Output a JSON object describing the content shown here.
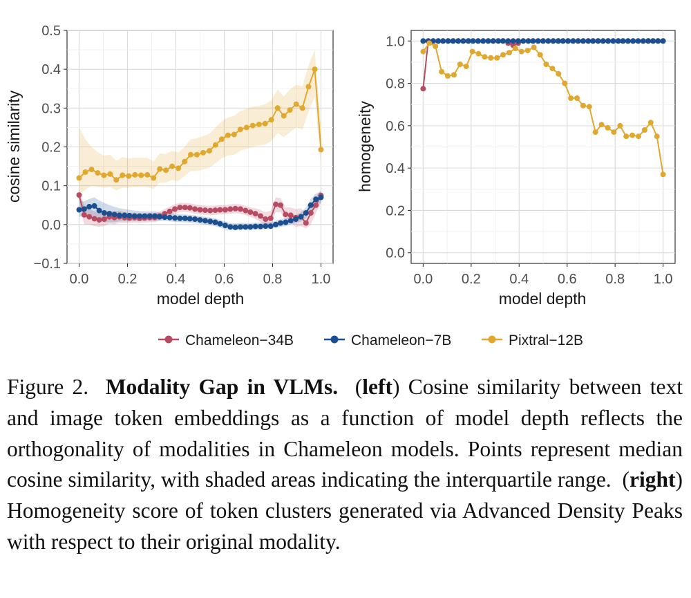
{
  "chart_data": [
    {
      "type": "line",
      "panel": "left",
      "xlabel": "model depth",
      "ylabel": "cosine similarity",
      "xlim": [
        -0.05,
        1.05
      ],
      "ylim": [
        -0.1,
        0.5
      ],
      "xticks": [
        "0.0",
        "0.2",
        "0.4",
        "0.6",
        "0.8",
        "1.0"
      ],
      "yticks": [
        "−0.1",
        "0.0",
        "0.1",
        "0.2",
        "0.3",
        "0.4",
        "0.5"
      ],
      "grid": true,
      "series": [
        {
          "name": "Chameleon−34B",
          "color": "#b84a62",
          "x": [
            0.0,
            0.021,
            0.042,
            0.063,
            0.083,
            0.104,
            0.125,
            0.146,
            0.167,
            0.188,
            0.208,
            0.229,
            0.25,
            0.271,
            0.292,
            0.313,
            0.333,
            0.354,
            0.375,
            0.396,
            0.417,
            0.438,
            0.458,
            0.479,
            0.5,
            0.521,
            0.542,
            0.563,
            0.583,
            0.604,
            0.625,
            0.646,
            0.667,
            0.688,
            0.708,
            0.729,
            0.75,
            0.771,
            0.792,
            0.813,
            0.833,
            0.854,
            0.875,
            0.896,
            0.917,
            0.938,
            0.958,
            0.979,
            1.0
          ],
          "y": [
            0.076,
            0.025,
            0.02,
            0.015,
            0.012,
            0.014,
            0.02,
            0.018,
            0.02,
            0.018,
            0.017,
            0.018,
            0.016,
            0.017,
            0.018,
            0.018,
            0.022,
            0.028,
            0.034,
            0.04,
            0.044,
            0.044,
            0.043,
            0.04,
            0.038,
            0.037,
            0.036,
            0.037,
            0.038,
            0.038,
            0.04,
            0.041,
            0.04,
            0.036,
            0.032,
            0.028,
            0.022,
            0.014,
            0.016,
            0.052,
            0.05,
            0.026,
            0.024,
            0.018,
            0.02,
            0.004,
            0.03,
            0.05,
            0.075
          ],
          "q1": [
            0.06,
            0.0,
            0.0,
            -0.004,
            -0.006,
            -0.004,
            0.002,
            0.0,
            0.004,
            0.004,
            0.004,
            0.005,
            0.004,
            0.005,
            0.006,
            0.006,
            0.01,
            0.016,
            0.022,
            0.028,
            0.032,
            0.032,
            0.031,
            0.028,
            0.026,
            0.025,
            0.024,
            0.025,
            0.026,
            0.026,
            0.028,
            0.029,
            0.028,
            0.024,
            0.02,
            0.014,
            0.006,
            -0.004,
            -0.004,
            0.032,
            0.032,
            0.008,
            0.004,
            -0.006,
            -0.004,
            -0.01,
            0.0,
            0.03,
            0.055
          ],
          "q3": [
            0.09,
            0.05,
            0.04,
            0.034,
            0.03,
            0.032,
            0.036,
            0.034,
            0.036,
            0.032,
            0.03,
            0.031,
            0.028,
            0.029,
            0.03,
            0.03,
            0.034,
            0.04,
            0.046,
            0.052,
            0.056,
            0.056,
            0.055,
            0.052,
            0.05,
            0.049,
            0.048,
            0.049,
            0.05,
            0.05,
            0.052,
            0.053,
            0.052,
            0.048,
            0.044,
            0.042,
            0.038,
            0.032,
            0.036,
            0.07,
            0.068,
            0.044,
            0.044,
            0.04,
            0.042,
            0.03,
            0.05,
            0.07,
            0.09
          ]
        },
        {
          "name": "Chameleon−7B",
          "color": "#1b4f8f",
          "x": [
            0.0,
            0.021,
            0.042,
            0.063,
            0.083,
            0.104,
            0.125,
            0.146,
            0.167,
            0.188,
            0.208,
            0.229,
            0.25,
            0.271,
            0.292,
            0.313,
            0.333,
            0.354,
            0.375,
            0.396,
            0.417,
            0.438,
            0.458,
            0.479,
            0.5,
            0.521,
            0.542,
            0.563,
            0.583,
            0.604,
            0.625,
            0.646,
            0.667,
            0.688,
            0.708,
            0.729,
            0.75,
            0.771,
            0.792,
            0.813,
            0.833,
            0.854,
            0.875,
            0.896,
            0.917,
            0.938,
            0.958,
            0.979,
            1.0
          ],
          "y": [
            0.038,
            0.04,
            0.046,
            0.048,
            0.036,
            0.03,
            0.028,
            0.026,
            0.024,
            0.024,
            0.023,
            0.022,
            0.022,
            0.022,
            0.022,
            0.022,
            0.02,
            0.019,
            0.018,
            0.017,
            0.016,
            0.016,
            0.015,
            0.014,
            0.012,
            0.01,
            0.008,
            0.006,
            0.002,
            -0.002,
            -0.006,
            -0.007,
            -0.006,
            -0.006,
            -0.006,
            -0.005,
            -0.005,
            -0.004,
            -0.004,
            0.0,
            0.004,
            0.006,
            0.01,
            0.014,
            0.02,
            0.03,
            0.05,
            0.065,
            0.07
          ],
          "q1": [
            0.02,
            0.022,
            0.024,
            0.02,
            0.01,
            0.006,
            0.006,
            0.006,
            0.008,
            0.008,
            0.008,
            0.009,
            0.009,
            0.01,
            0.01,
            0.01,
            0.01,
            0.009,
            0.008,
            0.007,
            0.006,
            0.006,
            0.005,
            0.004,
            0.002,
            0.0,
            -0.002,
            -0.004,
            -0.008,
            -0.012,
            -0.014,
            -0.015,
            -0.014,
            -0.014,
            -0.014,
            -0.013,
            -0.013,
            -0.012,
            -0.012,
            -0.008,
            -0.006,
            -0.004,
            0.0,
            0.004,
            0.008,
            0.016,
            0.034,
            0.05,
            0.055
          ],
          "q3": [
            0.06,
            0.06,
            0.066,
            0.07,
            0.062,
            0.056,
            0.05,
            0.046,
            0.042,
            0.04,
            0.038,
            0.036,
            0.035,
            0.034,
            0.034,
            0.034,
            0.031,
            0.03,
            0.029,
            0.028,
            0.027,
            0.026,
            0.025,
            0.024,
            0.022,
            0.02,
            0.018,
            0.016,
            0.012,
            0.008,
            0.004,
            0.003,
            0.004,
            0.004,
            0.004,
            0.005,
            0.005,
            0.006,
            0.006,
            0.01,
            0.014,
            0.016,
            0.02,
            0.024,
            0.032,
            0.044,
            0.066,
            0.08,
            0.085
          ]
        },
        {
          "name": "Pixtral−12B",
          "color": "#e0a82e",
          "x": [
            0.0,
            0.0256,
            0.0513,
            0.0769,
            0.1026,
            0.1282,
            0.1538,
            0.1795,
            0.2051,
            0.2308,
            0.2564,
            0.2821,
            0.3077,
            0.3333,
            0.359,
            0.3846,
            0.4103,
            0.4359,
            0.4615,
            0.4872,
            0.5128,
            0.5385,
            0.5641,
            0.5897,
            0.6154,
            0.641,
            0.6667,
            0.6923,
            0.7179,
            0.7436,
            0.7692,
            0.7949,
            0.8205,
            0.8462,
            0.8718,
            0.8974,
            0.9231,
            0.9487,
            0.9744,
            1.0
          ],
          "y": [
            0.12,
            0.135,
            0.142,
            0.133,
            0.127,
            0.13,
            0.115,
            0.127,
            0.125,
            0.128,
            0.127,
            0.128,
            0.12,
            0.143,
            0.14,
            0.15,
            0.145,
            0.162,
            0.18,
            0.18,
            0.185,
            0.19,
            0.205,
            0.22,
            0.23,
            0.232,
            0.245,
            0.25,
            0.255,
            0.258,
            0.26,
            0.27,
            0.3,
            0.28,
            0.295,
            0.31,
            0.3,
            0.355,
            0.4,
            0.193
          ],
          "q1": [
            0.075,
            0.09,
            0.1,
            0.097,
            0.095,
            0.097,
            0.088,
            0.095,
            0.095,
            0.097,
            0.097,
            0.097,
            0.092,
            0.108,
            0.108,
            0.115,
            0.112,
            0.125,
            0.138,
            0.138,
            0.142,
            0.146,
            0.158,
            0.17,
            0.178,
            0.18,
            0.19,
            0.195,
            0.2,
            0.203,
            0.206,
            0.215,
            0.236,
            0.225,
            0.238,
            0.25,
            0.245,
            0.29,
            0.33,
            0.15
          ],
          "q3": [
            0.25,
            0.22,
            0.2,
            0.186,
            0.178,
            0.18,
            0.164,
            0.174,
            0.17,
            0.172,
            0.172,
            0.172,
            0.163,
            0.183,
            0.182,
            0.19,
            0.186,
            0.2,
            0.22,
            0.222,
            0.228,
            0.234,
            0.25,
            0.266,
            0.276,
            0.28,
            0.292,
            0.298,
            0.304,
            0.306,
            0.31,
            0.32,
            0.348,
            0.33,
            0.348,
            0.36,
            0.356,
            0.41,
            0.45,
            0.25
          ]
        }
      ]
    },
    {
      "type": "line",
      "panel": "right",
      "xlabel": "model depth",
      "ylabel": "homogeneity",
      "xlim": [
        -0.05,
        1.05
      ],
      "ylim": [
        -0.05,
        1.05
      ],
      "xticks": [
        "0.0",
        "0.2",
        "0.4",
        "0.6",
        "0.8",
        "1.0"
      ],
      "yticks": [
        "0.0",
        "0.2",
        "0.4",
        "0.6",
        "0.8",
        "1.0"
      ],
      "grid": true,
      "series": [
        {
          "name": "Chameleon−34B",
          "color": "#b84a62",
          "x": [
            0.0,
            0.021,
            0.042,
            0.063,
            0.083,
            0.104,
            0.125,
            0.146,
            0.167,
            0.188,
            0.208,
            0.229,
            0.25,
            0.271,
            0.292,
            0.313,
            0.333,
            0.354,
            0.375,
            0.396,
            0.417,
            0.438,
            0.458,
            0.479,
            0.5,
            0.521,
            0.542,
            0.563,
            0.583,
            0.604,
            0.625,
            0.646,
            0.667,
            0.688,
            0.708,
            0.729,
            0.75,
            0.771,
            0.792,
            0.813,
            0.833,
            0.854,
            0.875,
            0.896,
            0.917,
            0.938,
            0.958,
            0.979,
            1.0
          ],
          "y": [
            0.775,
            1.0,
            1.0,
            1.0,
            1.0,
            1.0,
            1.0,
            1.0,
            1.0,
            1.0,
            1.0,
            1.0,
            1.0,
            1.0,
            1.0,
            1.0,
            1.0,
            0.99,
            0.98,
            0.99,
            1.0,
            1.0,
            1.0,
            1.0,
            1.0,
            1.0,
            1.0,
            1.0,
            1.0,
            1.0,
            1.0,
            1.0,
            1.0,
            1.0,
            1.0,
            1.0,
            1.0,
            1.0,
            1.0,
            1.0,
            1.0,
            1.0,
            1.0,
            1.0,
            1.0,
            1.0,
            1.0,
            1.0,
            1.0
          ]
        },
        {
          "name": "Chameleon−7B",
          "color": "#1b4f8f",
          "x": [
            0.0,
            0.021,
            0.042,
            0.063,
            0.083,
            0.104,
            0.125,
            0.146,
            0.167,
            0.188,
            0.208,
            0.229,
            0.25,
            0.271,
            0.292,
            0.313,
            0.333,
            0.354,
            0.375,
            0.396,
            0.417,
            0.438,
            0.458,
            0.479,
            0.5,
            0.521,
            0.542,
            0.563,
            0.583,
            0.604,
            0.625,
            0.646,
            0.667,
            0.688,
            0.708,
            0.729,
            0.75,
            0.771,
            0.792,
            0.813,
            0.833,
            0.854,
            0.875,
            0.896,
            0.917,
            0.938,
            0.958,
            0.979,
            1.0
          ],
          "y": [
            1.0,
            1.0,
            1.0,
            1.0,
            1.0,
            1.0,
            1.0,
            1.0,
            1.0,
            1.0,
            1.0,
            1.0,
            1.0,
            1.0,
            1.0,
            1.0,
            1.0,
            1.0,
            1.0,
            1.0,
            1.0,
            1.0,
            1.0,
            1.0,
            1.0,
            1.0,
            1.0,
            1.0,
            1.0,
            1.0,
            1.0,
            1.0,
            1.0,
            1.0,
            1.0,
            1.0,
            1.0,
            1.0,
            1.0,
            1.0,
            1.0,
            1.0,
            1.0,
            1.0,
            1.0,
            1.0,
            1.0,
            1.0,
            1.0
          ]
        },
        {
          "name": "Pixtral−12B",
          "color": "#e0a82e",
          "x": [
            0.0,
            0.0256,
            0.0513,
            0.0769,
            0.1026,
            0.1282,
            0.1538,
            0.1795,
            0.2051,
            0.2308,
            0.2564,
            0.2821,
            0.3077,
            0.3333,
            0.359,
            0.3846,
            0.4103,
            0.4359,
            0.4615,
            0.4872,
            0.5128,
            0.5385,
            0.5641,
            0.5897,
            0.6154,
            0.641,
            0.6667,
            0.6923,
            0.7179,
            0.7436,
            0.7692,
            0.7949,
            0.8205,
            0.8462,
            0.8718,
            0.8974,
            0.9231,
            0.9487,
            0.9744,
            1.0
          ],
          "y": [
            0.95,
            0.99,
            0.975,
            0.855,
            0.835,
            0.84,
            0.89,
            0.88,
            0.95,
            0.94,
            0.925,
            0.92,
            0.92,
            0.935,
            0.945,
            0.965,
            0.95,
            0.955,
            0.97,
            0.935,
            0.89,
            0.87,
            0.845,
            0.8,
            0.73,
            0.73,
            0.695,
            0.69,
            0.57,
            0.605,
            0.59,
            0.57,
            0.6,
            0.55,
            0.555,
            0.55,
            0.58,
            0.615,
            0.55,
            0.37
          ]
        }
      ]
    }
  ],
  "legend": {
    "items": [
      {
        "label": "Chameleon−34B",
        "color": "#b84a62"
      },
      {
        "label": "Chameleon−7B",
        "color": "#1b4f8f"
      },
      {
        "label": "Pixtral−12B",
        "color": "#e0a82e"
      }
    ]
  },
  "caption": {
    "prefix": "Figure 2.",
    "title": "Modality Gap in VLMs.",
    "left_open": "(",
    "left_word": "left",
    "left_close": ")",
    "left_text": "Cosine similarity be­tween text and image token embeddings as a function of model depth reflects the orthogonality of modalities in Chameleon mod­els. Points represent median cosine similarity, with shaded areas indicating the interquartile range.",
    "right_open": "(",
    "right_word": "right",
    "right_close": ")",
    "right_text": "Homogeneity score of token clusters generated via Advanced Density Peaks with respect to their original modality."
  }
}
